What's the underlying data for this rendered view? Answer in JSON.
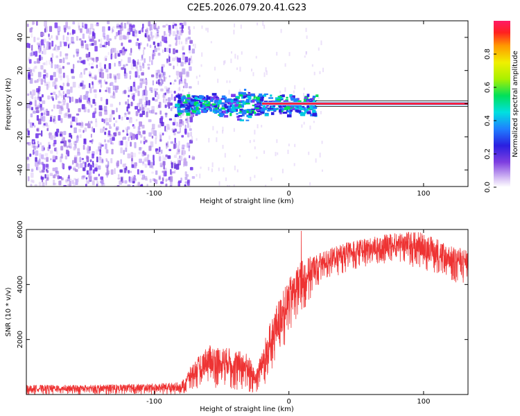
{
  "figure_title": "C2E5.2026.079.20.41.G23",
  "colors": {
    "snr_line": "#ee3333",
    "spectrum_line": "#ff2244",
    "axis": "#000000",
    "colormap_low": "#c9a8f2",
    "colormap_high": "#ff1a55"
  },
  "chart_data": [
    {
      "type": "heatmap",
      "title": "",
      "xlabel": "Height of straight line (km)",
      "ylabel": "Frequency (Hz)",
      "xlim": [
        -195,
        133
      ],
      "ylim": [
        -50,
        50
      ],
      "xticks": [
        -100,
        0,
        100
      ],
      "yticks": [
        -40,
        -20,
        0,
        20,
        40
      ],
      "xtick_labels": [
        "-100",
        "0",
        "100"
      ],
      "ytick_labels": [
        "-40",
        "-20",
        "0",
        "20",
        "40"
      ],
      "colorbar": {
        "label": "Normalized spectral amplitude",
        "range": [
          0,
          1
        ],
        "ticks": [
          0.0,
          0.2,
          0.4,
          0.6,
          0.8
        ],
        "tick_labels": [
          "0.0",
          "0.2",
          "0.4",
          "0.6",
          "0.8"
        ]
      },
      "regions": [
        {
          "name": "noise",
          "x_range": [
            -195,
            -72
          ],
          "freq_range": [
            -50,
            50
          ],
          "amplitude": 0.1
        },
        {
          "name": "transition",
          "x_range": [
            -85,
            20
          ],
          "freq_center": 0,
          "freq_halfwidth": 4,
          "amplitude": 0.35
        },
        {
          "name": "carrier-line",
          "x_range": [
            20,
            133
          ],
          "freq_center": 0,
          "amplitude": 1.0
        }
      ]
    },
    {
      "type": "line",
      "title": "",
      "xlabel": "Height of straight line (km)",
      "ylabel": "SNR (10 * v/v)",
      "xlim": [
        -195,
        133
      ],
      "ylim": [
        0,
        6000
      ],
      "xticks": [
        -100,
        0,
        100
      ],
      "yticks": [
        2000,
        4000,
        6000
      ],
      "xtick_labels": [
        "-100",
        "0",
        "100"
      ],
      "ytick_labels": [
        "2000",
        "4000",
        "6000"
      ],
      "series": [
        {
          "name": "SNR",
          "envelope": {
            "x": [
              -195,
              -150,
              -100,
              -80,
              -72,
              -60,
              -45,
              -30,
              -25,
              -18,
              -10,
              -5,
              0,
              5,
              10,
              20,
              30,
              40,
              60,
              80,
              95,
              110,
              120,
              133
            ],
            "low": [
              0,
              0,
              0,
              0,
              150,
              200,
              200,
              50,
              50,
              300,
              800,
              1500,
              2200,
              2600,
              3000,
              3800,
              4200,
              4400,
              4700,
              4800,
              4600,
              4300,
              4100,
              4000
            ],
            "high": [
              350,
              350,
              400,
              450,
              1100,
              1800,
              1700,
              1500,
              800,
              2000,
              3200,
              3700,
              4200,
              4600,
              4900,
              5100,
              5300,
              5500,
              5700,
              5900,
              5950,
              5700,
              5400,
              5300
            ]
          }
        }
      ]
    }
  ]
}
